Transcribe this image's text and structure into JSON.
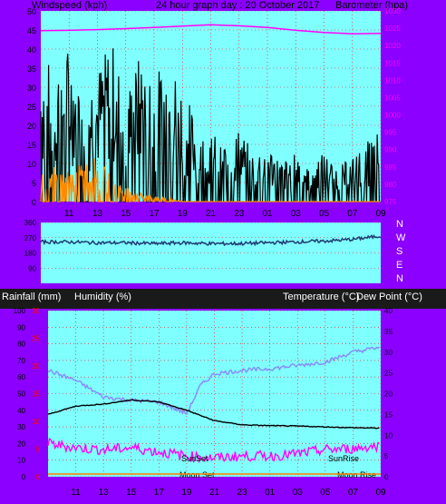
{
  "colors": {
    "panel_bg": "#8b00ff",
    "plot_bg": "#80ffff",
    "axis_text": "#000000",
    "wind_gust": "#000000",
    "wind_avg": "#ff8c00",
    "wind_light": "#90ee90",
    "barometer": "#ff00ff",
    "direction": "#1f3b73",
    "humidity": "#8888ff",
    "temperature": "#000000",
    "dew_point": "#ff00ff",
    "rainfall": "#ff7f00",
    "grid_red": "#ff0000"
  },
  "labels": {
    "wind_title": "Windspeed (kph)",
    "graph_title": "24 hour graph day : 20 October 2017",
    "baro_title": "Barometer (hpa)",
    "rain_title": "Rainfall (mm)",
    "humidity_title": "Humidity (%)",
    "temp_title": "Temperature (°C)",
    "dew_title": "Dew Point (°C)",
    "sunset": "SunSet",
    "sunrise": "SunRise",
    "moonset": "Moon Set",
    "moonrise": "Moon Rise",
    "compass": [
      "N",
      "W",
      "S",
      "E",
      "N"
    ]
  },
  "chart_data": [
    {
      "type": "line",
      "title": "24 hour graph day : 20 October 2017",
      "x_ticks": [
        "11",
        "13",
        "15",
        "17",
        "19",
        "21",
        "23",
        "01",
        "03",
        "05",
        "07",
        "09"
      ],
      "left_axis": {
        "label": "Windspeed (kph)",
        "ticks": [
          0,
          5,
          10,
          15,
          20,
          25,
          30,
          35,
          40,
          45,
          50
        ],
        "range": [
          0,
          50
        ]
      },
      "right_axis": {
        "label": "Barometer (hpa)",
        "ticks": [
          975,
          980,
          985,
          990,
          995,
          1000,
          1005,
          1010,
          1015,
          1020,
          1025,
          1030
        ],
        "range": [
          975,
          1030
        ]
      },
      "series": [
        {
          "name": "Barometer (hpa)",
          "axis": "right",
          "x": [
            9,
            11,
            13,
            15,
            17,
            19,
            21,
            23,
            25,
            27,
            29,
            31,
            33
          ],
          "values": [
            1024.3,
            1024.4,
            1024.6,
            1024.9,
            1025.2,
            1025.6,
            1026.0,
            1025.7,
            1025.2,
            1024.4,
            1023.8,
            1023.4,
            1023.5
          ]
        },
        {
          "name": "wind_gust",
          "axis": "left",
          "x": [
            9,
            10,
            11,
            12,
            13,
            14,
            15,
            16,
            17,
            18,
            19,
            20,
            21,
            22,
            23,
            24,
            25,
            26,
            27,
            28,
            29,
            30,
            31,
            32,
            33
          ],
          "values": [
            30,
            28,
            32,
            25,
            27,
            33,
            22,
            30,
            26,
            29,
            24,
            16,
            14,
            12,
            15,
            10,
            12,
            8,
            10,
            8,
            10,
            7,
            9,
            12,
            15
          ]
        },
        {
          "name": "wind_avg",
          "axis": "left",
          "x": [
            9,
            10,
            11,
            12,
            13,
            14,
            15,
            16,
            17,
            18,
            19,
            20,
            21,
            22,
            23,
            24,
            25,
            26,
            27,
            28,
            29,
            30,
            31,
            32,
            33
          ],
          "values": [
            8,
            7,
            6,
            8,
            9,
            5,
            3,
            2,
            1,
            1,
            0,
            0,
            0,
            0,
            0,
            0,
            0,
            0,
            0,
            0,
            0,
            0,
            0,
            0,
            0
          ]
        }
      ]
    },
    {
      "type": "line",
      "left_axis": {
        "ticks": [
          90,
          180,
          270,
          360
        ]
      },
      "series": [
        {
          "name": "direction",
          "x": [
            9,
            11,
            13,
            15,
            17,
            19,
            21,
            23,
            25,
            27,
            29,
            31,
            33
          ],
          "values": [
            245,
            245,
            240,
            240,
            235,
            240,
            235,
            235,
            240,
            245,
            250,
            260,
            280
          ]
        }
      ]
    },
    {
      "type": "line",
      "x_ticks": [
        "11",
        "13",
        "15",
        "17",
        "19",
        "21",
        "23",
        "01",
        "03",
        "05",
        "07",
        "09"
      ],
      "left_axis": {
        "label": "Humidity (%)",
        "ticks": [
          0,
          10,
          20,
          30,
          40,
          50,
          60,
          70,
          80,
          90,
          100
        ],
        "range": [
          0,
          100
        ]
      },
      "rain_axis": {
        "label": "Rainfall (mm)",
        "ticks": [
          0,
          5,
          10,
          15,
          20,
          25,
          30
        ],
        "range": [
          0,
          30
        ]
      },
      "right_axis": {
        "label": "Temperature (°C)",
        "ticks": [
          0,
          5,
          10,
          15,
          20,
          25,
          30,
          35,
          40
        ],
        "range": [
          0,
          40
        ]
      },
      "series": [
        {
          "name": "humidity",
          "axis": "left",
          "x": [
            9,
            11,
            13,
            15,
            17,
            19,
            20,
            21,
            23,
            25,
            27,
            29,
            31,
            33
          ],
          "values": [
            64,
            58,
            48,
            46,
            45,
            38,
            55,
            62,
            64,
            65,
            67,
            69,
            75,
            78
          ]
        },
        {
          "name": "temperature",
          "axis": "right",
          "x": [
            9,
            11,
            13,
            15,
            17,
            19,
            21,
            23,
            25,
            27,
            29,
            31,
            33
          ],
          "values": [
            15,
            17,
            17.5,
            18.5,
            18,
            16,
            13.5,
            12.5,
            12.3,
            12.2,
            12,
            11.8,
            11.7
          ]
        },
        {
          "name": "dew_point",
          "axis": "right",
          "x": [
            9,
            11,
            13,
            15,
            17,
            19,
            21,
            23,
            25,
            27,
            29,
            31,
            33
          ],
          "values": [
            8,
            7,
            6.5,
            7,
            6,
            5,
            4.5,
            5,
            5,
            5.5,
            6.5,
            6.8,
            7.5
          ]
        }
      ]
    }
  ]
}
